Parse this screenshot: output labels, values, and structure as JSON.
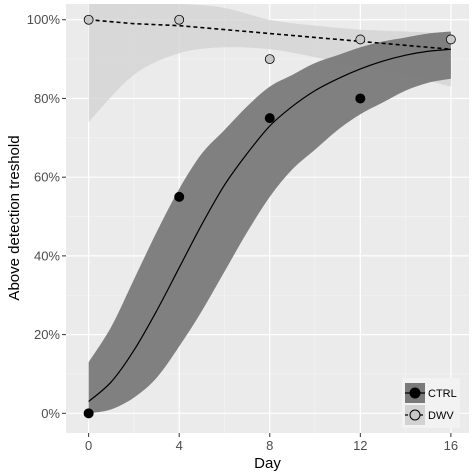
{
  "chart_data": {
    "type": "scatter",
    "xlabel": "Day",
    "ylabel": "Above detection treshold",
    "xlim": [
      -1,
      16.8
    ],
    "ylim": [
      -0.05,
      1.04
    ],
    "x_ticks": [
      0,
      4,
      8,
      12,
      16
    ],
    "y_ticks": [
      0,
      0.2,
      0.4,
      0.6,
      0.8,
      1.0
    ],
    "x_tick_labels": [
      "0",
      "4",
      "8",
      "12",
      "16"
    ],
    "y_tick_labels": [
      "0%",
      "20%",
      "40%",
      "60%",
      "80%",
      "100%"
    ],
    "grid": true,
    "legend_position": "bottom-right",
    "series": [
      {
        "name": "CTRL",
        "marker": "filled circle",
        "fit_line": "solid",
        "color": "#000000",
        "ribbon_color": "#7a7a7a",
        "points": [
          {
            "x": 0,
            "y": 0.0
          },
          {
            "x": 4,
            "y": 0.55
          },
          {
            "x": 8,
            "y": 0.75
          },
          {
            "x": 12,
            "y": 0.8
          }
        ],
        "fit": [
          {
            "x": 0,
            "y": 0.03,
            "lo": 0.0,
            "hi": 0.13
          },
          {
            "x": 1,
            "y": 0.08,
            "lo": 0.01,
            "hi": 0.22
          },
          {
            "x": 2,
            "y": 0.16,
            "lo": 0.04,
            "hi": 0.34
          },
          {
            "x": 3,
            "y": 0.26,
            "lo": 0.09,
            "hi": 0.46
          },
          {
            "x": 4,
            "y": 0.37,
            "lo": 0.17,
            "hi": 0.57
          },
          {
            "x": 5,
            "y": 0.48,
            "lo": 0.26,
            "hi": 0.66
          },
          {
            "x": 6,
            "y": 0.58,
            "lo": 0.36,
            "hi": 0.72
          },
          {
            "x": 7,
            "y": 0.66,
            "lo": 0.46,
            "hi": 0.78
          },
          {
            "x": 8,
            "y": 0.73,
            "lo": 0.55,
            "hi": 0.83
          },
          {
            "x": 9,
            "y": 0.78,
            "lo": 0.62,
            "hi": 0.86
          },
          {
            "x": 10,
            "y": 0.82,
            "lo": 0.67,
            "hi": 0.89
          },
          {
            "x": 11,
            "y": 0.85,
            "lo": 0.72,
            "hi": 0.91
          },
          {
            "x": 12,
            "y": 0.875,
            "lo": 0.76,
            "hi": 0.93
          },
          {
            "x": 13,
            "y": 0.895,
            "lo": 0.79,
            "hi": 0.945
          },
          {
            "x": 14,
            "y": 0.91,
            "lo": 0.82,
            "hi": 0.955
          },
          {
            "x": 15,
            "y": 0.92,
            "lo": 0.84,
            "hi": 0.965
          },
          {
            "x": 16,
            "y": 0.925,
            "lo": 0.85,
            "hi": 0.97
          }
        ]
      },
      {
        "name": "DWV",
        "marker": "open grey circle",
        "fit_line": "dashed",
        "color": "#000000",
        "point_fill": "#c8c8c8",
        "ribbon_color": "#d2d2d2",
        "points": [
          {
            "x": 0,
            "y": 1.0
          },
          {
            "x": 4,
            "y": 1.0
          },
          {
            "x": 8,
            "y": 0.9
          },
          {
            "x": 12,
            "y": 0.95
          },
          {
            "x": 16,
            "y": 0.95
          }
        ],
        "fit": [
          {
            "x": 0,
            "y": 1.0,
            "lo": 0.74,
            "hi": 1.04
          },
          {
            "x": 2,
            "y": 0.99,
            "lo": 0.86,
            "hi": 1.04
          },
          {
            "x": 4,
            "y": 0.985,
            "lo": 0.915,
            "hi": 1.04
          },
          {
            "x": 6,
            "y": 0.975,
            "lo": 0.93,
            "hi": 1.03
          },
          {
            "x": 8,
            "y": 0.965,
            "lo": 0.925,
            "hi": 1.0
          },
          {
            "x": 10,
            "y": 0.955,
            "lo": 0.905,
            "hi": 0.985
          },
          {
            "x": 12,
            "y": 0.945,
            "lo": 0.88,
            "hi": 0.975
          },
          {
            "x": 14,
            "y": 0.935,
            "lo": 0.86,
            "hi": 0.97
          },
          {
            "x": 16,
            "y": 0.925,
            "lo": 0.83,
            "hi": 0.965
          }
        ]
      }
    ]
  }
}
